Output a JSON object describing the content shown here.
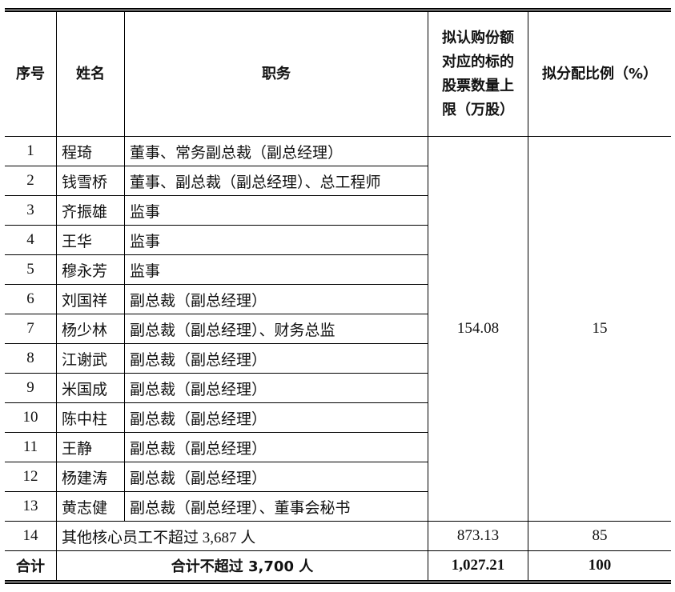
{
  "headers": {
    "no": "序号",
    "name": "姓名",
    "position": "职务",
    "shares": "拟认购份额对应的标的股票数量上限（万股）",
    "ratio": "拟分配比例（%）"
  },
  "rows": [
    {
      "no": "1",
      "name": "程琦",
      "position": "董事、常务副总裁（副总经理）"
    },
    {
      "no": "2",
      "name": "钱雪桥",
      "position": "董事、副总裁（副总经理）、总工程师"
    },
    {
      "no": "3",
      "name": "齐振雄",
      "position": "监事"
    },
    {
      "no": "4",
      "name": "王华",
      "position": "监事"
    },
    {
      "no": "5",
      "name": "穆永芳",
      "position": "监事"
    },
    {
      "no": "6",
      "name": "刘国祥",
      "position": "副总裁（副总经理）"
    },
    {
      "no": "7",
      "name": "杨少林",
      "position": "副总裁（副总经理）、财务总监"
    },
    {
      "no": "8",
      "name": "江谢武",
      "position": "副总裁（副总经理）"
    },
    {
      "no": "9",
      "name": "米国成",
      "position": "副总裁（副总经理）"
    },
    {
      "no": "10",
      "name": "陈中柱",
      "position": "副总裁（副总经理）"
    },
    {
      "no": "11",
      "name": "王静",
      "position": "副总裁（副总经理）"
    },
    {
      "no": "12",
      "name": "杨建涛",
      "position": "副总裁（副总经理）"
    },
    {
      "no": "13",
      "name": "黄志健",
      "position": "副总裁（副总经理）、董事会秘书"
    }
  ],
  "group_shares": "154.08",
  "group_ratio": "15",
  "other": {
    "no": "14",
    "desc": "其他核心员工不超过 3,687 人",
    "shares": "873.13",
    "ratio": "85"
  },
  "total": {
    "label": "合计",
    "desc": "合计不超过 3,700 人",
    "shares": "1,027.21",
    "ratio": "100"
  }
}
